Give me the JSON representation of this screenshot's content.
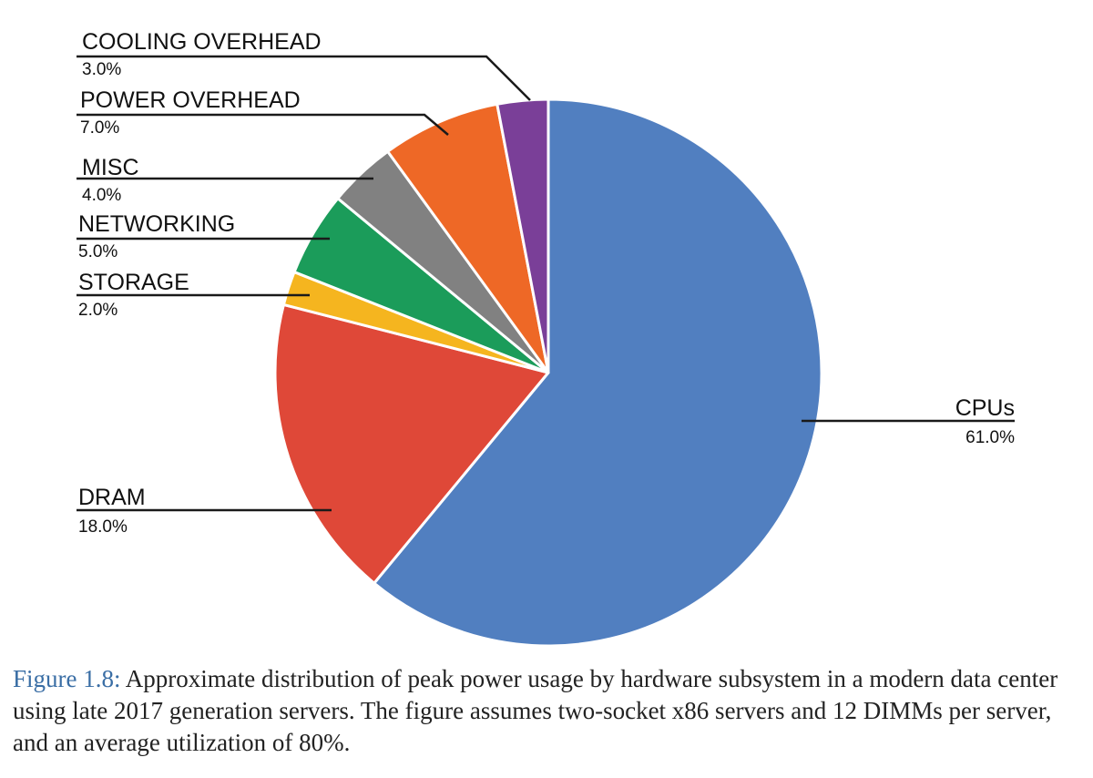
{
  "chart_data": {
    "type": "pie",
    "title": "",
    "start_angle_deg": 0,
    "direction": "clockwise",
    "slices": [
      {
        "label": "CPUs",
        "value": 61.0,
        "value_label": "61.0%",
        "color": "#517fc0"
      },
      {
        "label": "DRAM",
        "value": 18.0,
        "value_label": "18.0%",
        "color": "#df4838"
      },
      {
        "label": "STORAGE",
        "value": 2.0,
        "value_label": "2.0%",
        "color": "#f5b51f"
      },
      {
        "label": "NETWORKING",
        "value": 5.0,
        "value_label": "5.0%",
        "color": "#1b9c5a"
      },
      {
        "label": "MISC",
        "value": 4.0,
        "value_label": "4.0%",
        "color": "#818181"
      },
      {
        "label": "POWER OVERHEAD",
        "value": 7.0,
        "value_label": "7.0%",
        "color": "#ee6826"
      },
      {
        "label": "COOLING OVERHEAD",
        "value": 3.0,
        "value_label": "3.0%",
        "color": "#7a3f98"
      }
    ],
    "legend": "none"
  },
  "caption": {
    "figure_label": "Figure 1.8:",
    "text": " Approximate distribution of peak power usage by hardware subsystem in a modern data center using late 2017 generation servers. The figure assumes two-socket x86 servers and 12 DIMMs per server, and an average utilization of 80%."
  }
}
